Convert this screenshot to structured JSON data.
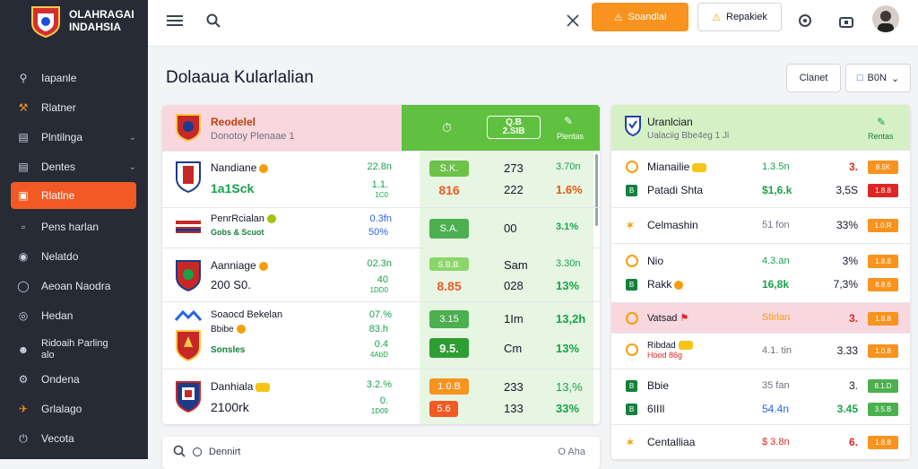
{
  "app": {
    "brand_line1": "OLAHRAGAI",
    "brand_line2": "INDAHSIA"
  },
  "sidebar": {
    "items": [
      {
        "label": "Iapanle",
        "icon": "search-icon"
      },
      {
        "label": "Rlatner",
        "icon": "tools-icon"
      },
      {
        "label": "Plntilnga",
        "icon": "document-icon",
        "chevron": true
      },
      {
        "label": "Dentes",
        "icon": "layers-icon",
        "chevron": true
      },
      {
        "label": "Rlatlne",
        "icon": "calendar-icon",
        "active": true
      },
      {
        "label": "Pens harlan",
        "icon": "file-icon"
      },
      {
        "label": "Nelatdo",
        "icon": "pin-icon"
      },
      {
        "label": "Aeoan Naodra",
        "icon": "shield-icon"
      },
      {
        "label": "Hedan",
        "icon": "globe-icon"
      },
      {
        "label": "Ridoaih Parling",
        "label2": "alo",
        "icon": "person-icon"
      },
      {
        "label": "Ondena",
        "icon": "gear-icon"
      },
      {
        "label": "Grlalago",
        "icon": "plane-icon"
      },
      {
        "label": "Vecota",
        "icon": "power-icon"
      }
    ]
  },
  "topbar": {
    "primary_label": "Soandlai",
    "outline_label": "Repakiek",
    "colors": {
      "primary": "#f7931e",
      "accent": "#f15a24"
    }
  },
  "page": {
    "title": "Dolaaua Kularlalian",
    "btn_one": "Clanet",
    "btn_two": "B0N"
  },
  "left_card": {
    "title": "Reodelel",
    "subtitle": "Donotoy Plenaae 1",
    "pill_line1": "Q.B",
    "pill_line2": "2.SIB",
    "right_sub": "Plentas",
    "rows": [
      {
        "name": "Nandiane",
        "sub": "1a1Sck",
        "odd1": "22.8n",
        "odd2a": "1.1.",
        "odd2b": "1C0",
        "pill": "S.K.",
        "pill_color": "#6cc24a",
        "v1_top": "273",
        "v2_top": "3.70n",
        "pill2": "816",
        "v1": "222",
        "v2": "1.6%"
      },
      {
        "name": "PenrRcialan",
        "sub": "Gobs & Scuot",
        "odd1": "0.3fn",
        "odd2a": "50%",
        "pill": "S.A.",
        "pill_color": "#4caf50",
        "v1": "00",
        "v2": "3.1%"
      },
      {
        "name": "Aanniage",
        "sub": "200 S0.",
        "odd1": "02.3n",
        "odd2a": "40",
        "odd2b": "1DD0",
        "pill": "S.B.B.",
        "pill_color": "#8bd66a",
        "v1_top": "Sam",
        "v2_top": "3.30n",
        "pill2": "8.85",
        "v1": "028",
        "v2": "13%"
      },
      {
        "name": "Soaocd Bekelan",
        "sub": "Bbibe",
        "sub2": "Sonsles",
        "odd1": "07.%",
        "odd2a": "83.h",
        "odd2b": "0.4",
        "odd2c": "4AbD",
        "pill": "3.15",
        "pill_color": "#4caf50",
        "pill2": "9.5.",
        "v1_top": "1Im",
        "v2_top": "13,2h",
        "v1": "Cm",
        "v2": "13%"
      },
      {
        "name": "Danhiala",
        "sub": "2100rk",
        "odd1": "3.2.%",
        "odd2a": "0.",
        "odd2b": "1D09",
        "pill": "1.0.B",
        "pill_color": "#f7931e",
        "pill2": "5.6",
        "pill2_color": "#f15a24",
        "v1_top": "233",
        "v2_top": "13,%",
        "v1": "133",
        "v2": "33%"
      }
    ]
  },
  "right_card": {
    "title": "Uranlcian",
    "subtitle": "Ualaciig Bbe4eg 1 Ji",
    "right_sub": "Rentas",
    "rows": [
      {
        "name": "Mianailie",
        "odds": "1.3.5n",
        "pct": "3.",
        "tag": "8.5K",
        "tag_color": "#f7931e",
        "icon": "coin"
      },
      {
        "name": "Patadi Shta",
        "odds": "$1,6.k",
        "pct": "3,5S",
        "tag": "1.8.8",
        "tag_color": "#dc2626",
        "icon": "b"
      },
      {
        "name": "Celmashin",
        "odds": "51 fon",
        "pct": "33%",
        "tag": "1.0.R",
        "tag_color": "#f7931e",
        "icon": "star"
      },
      {
        "name": "Nio",
        "odds": "4.3.an",
        "pct": "3%",
        "tag": "1.8.8",
        "tag_color": "#f7931e",
        "icon": "coin"
      },
      {
        "name": "Rakk",
        "odds": "16,8k",
        "pct": "7,3%",
        "tag": "8.8.6",
        "tag_color": "#f7931e",
        "icon": "b"
      },
      {
        "name": "Vatsad",
        "odds": "Stirlan",
        "pct": "3.",
        "tag": "1.8.8",
        "tag_color": "#f7931e",
        "icon": "coin",
        "highlight": true
      },
      {
        "name": "Ribdad",
        "name2": "Hood 86g",
        "odds": "4.1. tin",
        "pct": "3.33",
        "tag": "1.0.8",
        "tag_color": "#f7931e",
        "icon": "coin"
      },
      {
        "name": "Bbie",
        "odds": "35 fan",
        "pct": "3.",
        "tag": "8.1.D",
        "tag_color": "#4caf50",
        "icon": "b"
      },
      {
        "name": "6IIIl",
        "odds": "54.4n",
        "pct": "3.45",
        "tag": "3.5.B",
        "tag_color": "#4caf50",
        "icon": "b"
      },
      {
        "name": "Centalliaa",
        "odds": "$ 3.8n",
        "pct": "6.",
        "tag": "1.8.8",
        "tag_color": "#f7931e",
        "icon": "star"
      }
    ]
  },
  "bottom_search": {
    "text": "Dennirt",
    "right": "O Aha"
  }
}
